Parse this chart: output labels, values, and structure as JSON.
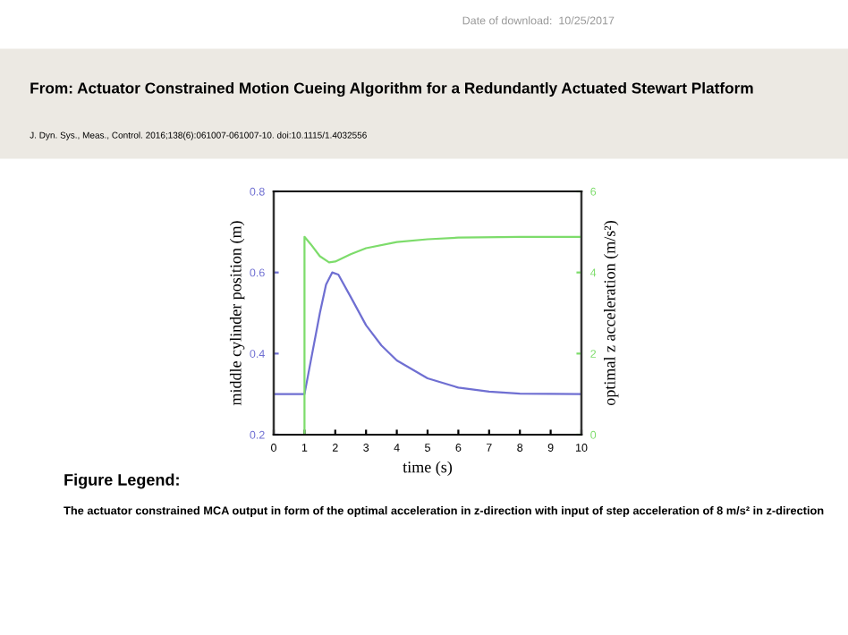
{
  "chart_data": {
    "type": "line",
    "title": "From: Actuator Constrained Motion Cueing Algorithm for a Redundantly Actuated Stewart Platform",
    "subtitle": "J. Dyn. Sys., Meas., Control. 2016;138(6):061007-061007-10. doi:10.1115/1.4032556",
    "xlabel": "time (s)",
    "ylabel": "middle cylinder position (m)",
    "y2label": "optimal z acceleration (m/s²)",
    "annotations": [
      "Date of download:  10/25/2017",
      "Figure Legend:",
      "The actuator constrained MCA output in form of the optimal acceleration in z-direction with input of step acceleration of 8 m/s² in z-direction"
    ],
    "series": [
      {
        "color": "#6f6fd2",
        "x": [
          0,
          1,
          1.2,
          1.5,
          1.7,
          1.9,
          2.1,
          2.5,
          3,
          3.5,
          4,
          5,
          6,
          7,
          8,
          10
        ],
        "values": [
          0.3,
          0.3,
          0.38,
          0.5,
          0.57,
          0.6,
          0.595,
          0.54,
          0.47,
          0.42,
          0.383,
          0.339,
          0.316,
          0.306,
          0.301,
          0.3
        ]
      },
      {
        "color": "#7ddc6b",
        "axis": "y2",
        "x": [
          0,
          1,
          1,
          1.2,
          1.5,
          1.8,
          2,
          2.5,
          3,
          4,
          5,
          6,
          8,
          10
        ],
        "values": [
          0,
          0,
          4.88,
          4.7,
          4.4,
          4.25,
          4.27,
          4.45,
          4.6,
          4.75,
          4.82,
          4.86,
          4.88,
          4.88
        ]
      }
    ],
    "xlim": [
      0,
      10
    ],
    "xticks": [
      0,
      1,
      2,
      3,
      4,
      5,
      6,
      7,
      8,
      9,
      10
    ],
    "ylim": [
      0.2,
      0.8
    ],
    "yticks": [
      0.2,
      0.4,
      0.6,
      0.8
    ],
    "y2lim": [
      0,
      6
    ],
    "y2ticks": [
      0,
      2,
      4,
      6
    ],
    "grid": false,
    "legend": false,
    "marker": "none",
    "line_style": "solid"
  }
}
